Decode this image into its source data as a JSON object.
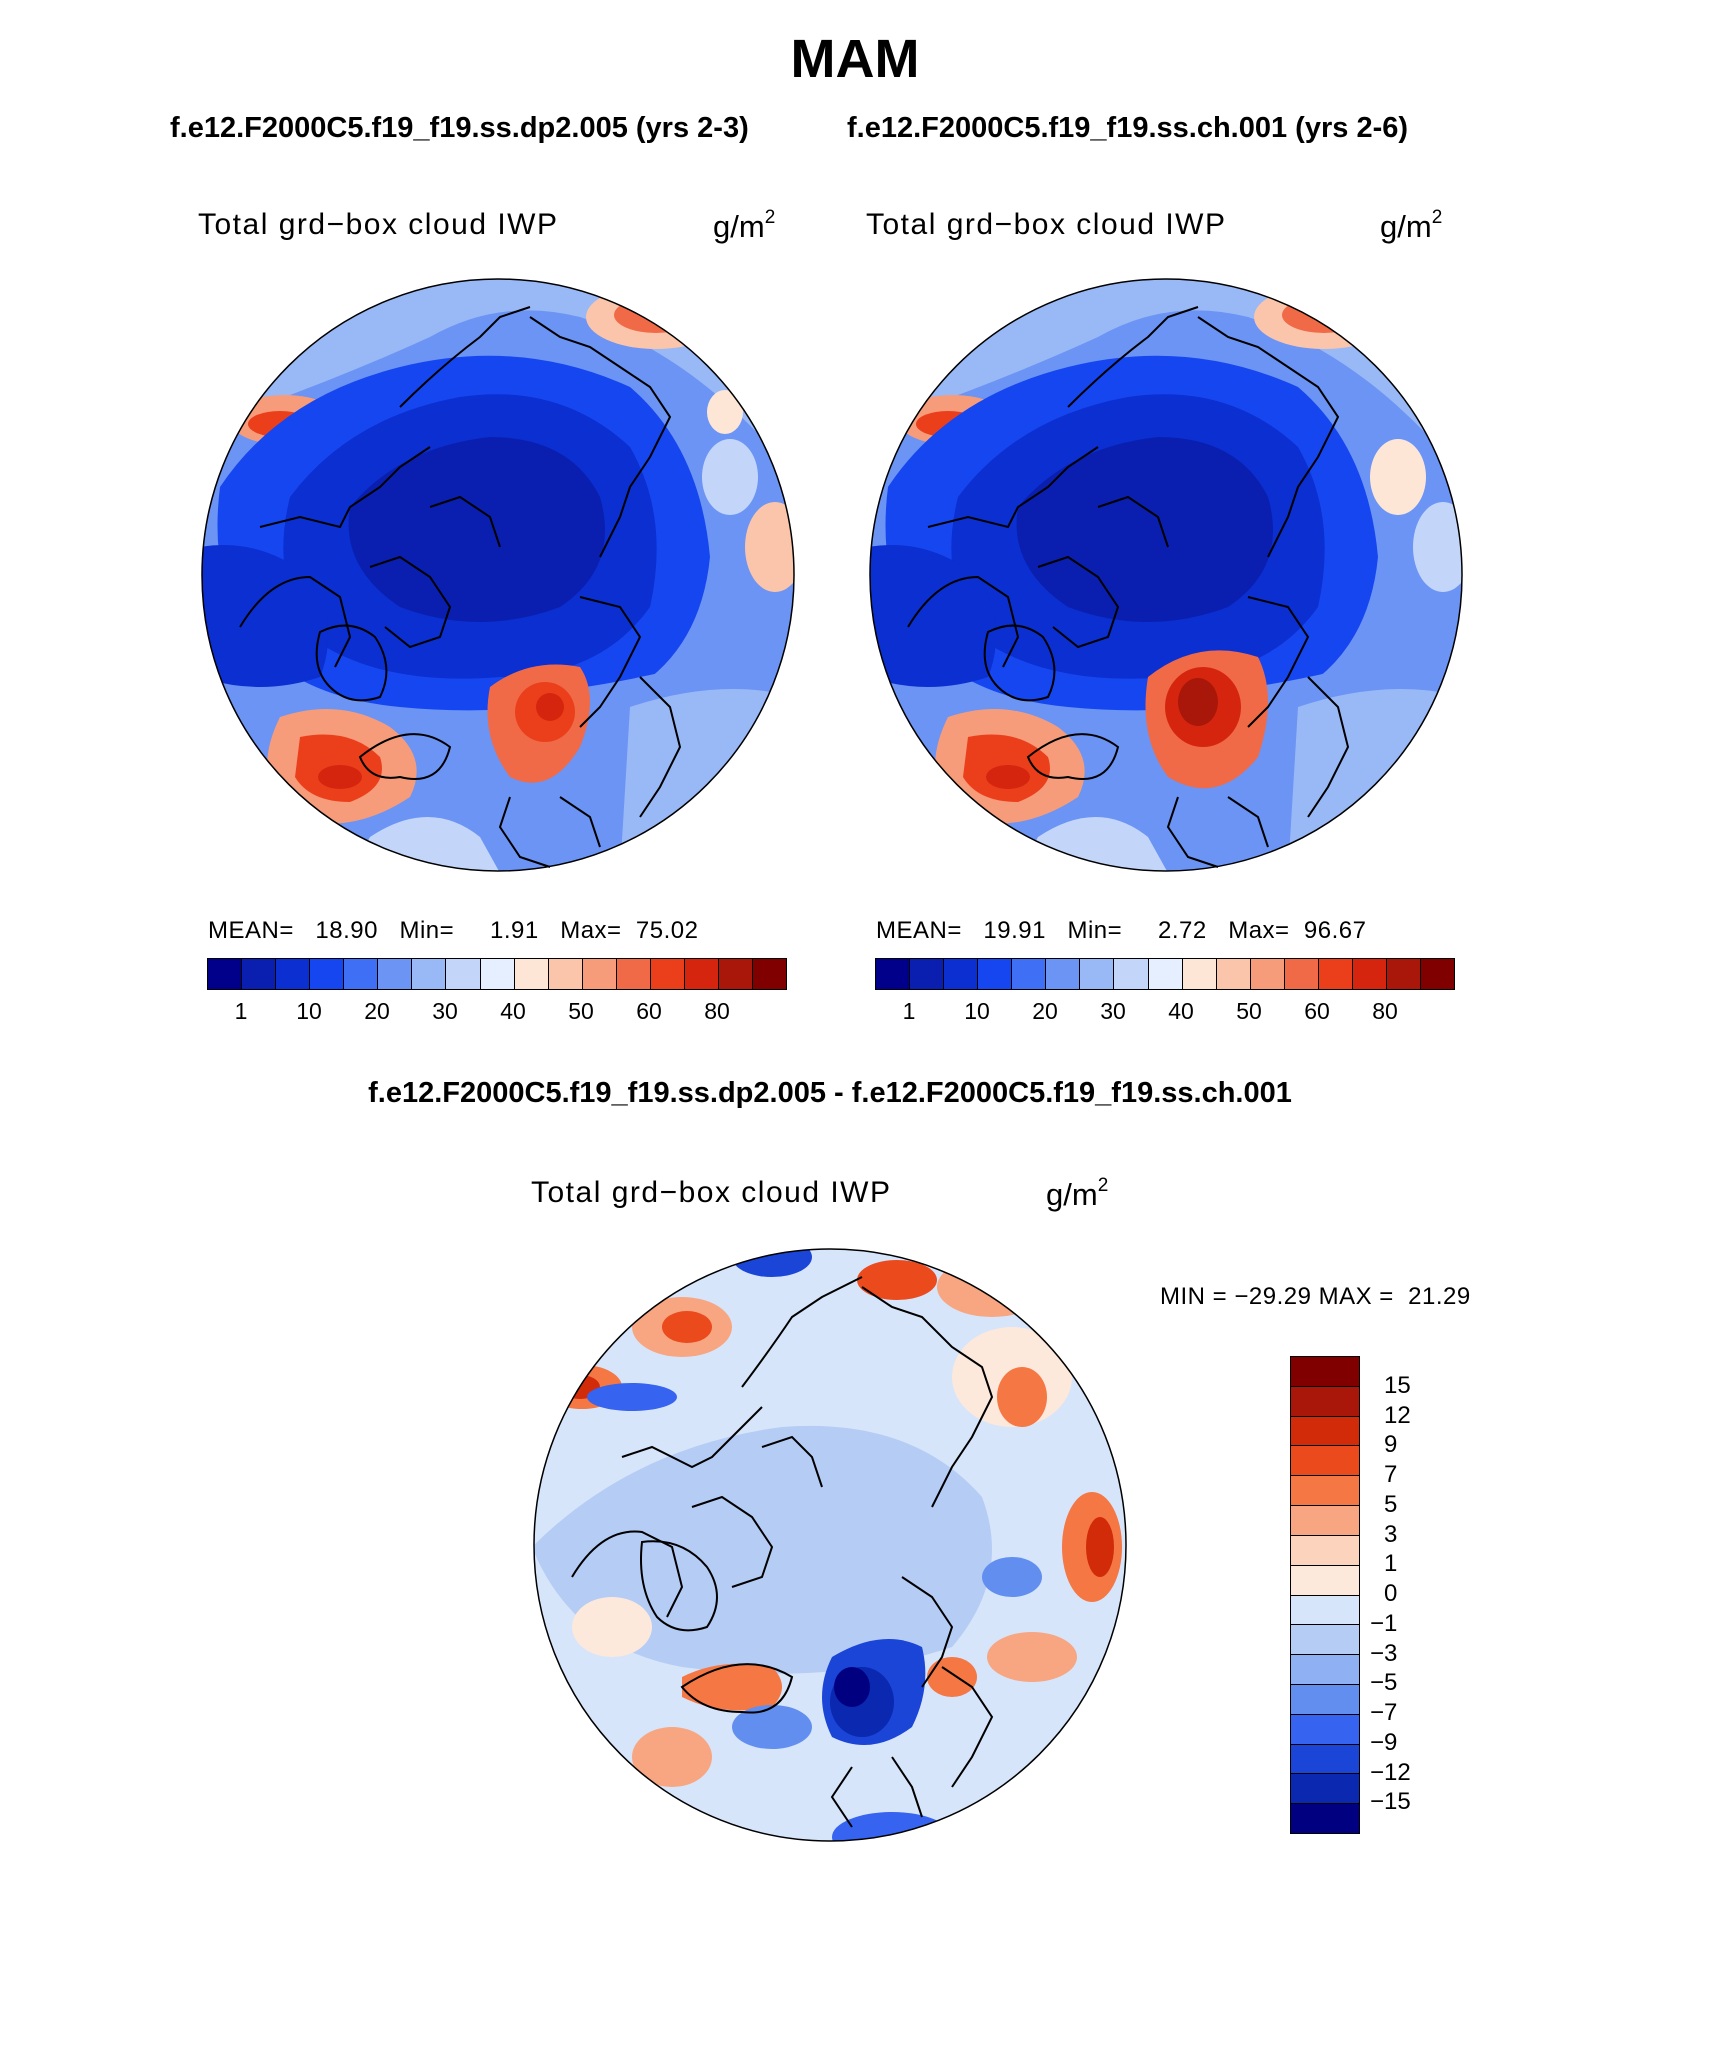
{
  "page": {
    "season": "MAM",
    "run_a": "f.e12.F2000C5.f19_f19.ss.dp2.005 (yrs 2-3)",
    "run_b": "f.e12.F2000C5.f19_f19.ss.ch.001 (yrs 2-6)",
    "diff_title": "f.e12.F2000C5.f19_f19.ss.dp2.005 - f.e12.F2000C5.f19_f19.ss.ch.001"
  },
  "panels": [
    {
      "variable": "Total grd−box cloud IWP",
      "unit_base": "g/m",
      "unit_exp": "2",
      "mean_label": "MEAN=",
      "mean": "18.90",
      "min_label": "Min=",
      "min": "1.91",
      "max_label": "Max=",
      "max": "75.02"
    },
    {
      "variable": "Total grd−box cloud IWP",
      "unit_base": "g/m",
      "unit_exp": "2",
      "mean_label": "MEAN=",
      "mean": "19.91",
      "min_label": "Min=",
      "min": "2.72",
      "max_label": "Max=",
      "max": "96.67"
    },
    {
      "variable": "Total grd−box cloud IWP",
      "unit_base": "g/m",
      "unit_exp": "2",
      "min_label": "MIN =",
      "min": "−29.29",
      "max_label": "MAX =",
      "max": "21.29"
    }
  ],
  "colorbars": {
    "abs_colors": [
      "#00008b",
      "#0a1fb0",
      "#0b2fd0",
      "#1646f0",
      "#3f6ff5",
      "#6b94f4",
      "#99b8f6",
      "#c3d6fa",
      "#e6efff",
      "#fde6d6",
      "#fbc5ab",
      "#f69c7a",
      "#f06a47",
      "#eb3f1c",
      "#d6250e",
      "#a81709",
      "#800000"
    ],
    "abs_labels": [
      "1",
      "10",
      "20",
      "30",
      "40",
      "50",
      "60",
      "80"
    ],
    "diff_colors": [
      "#800000",
      "#a81709",
      "#d22b0a",
      "#eb4a1c",
      "#f47744",
      "#f8a682",
      "#fcd3bd",
      "#fde8dc",
      "#d6e5fa",
      "#b5ccf5",
      "#8fb0f2",
      "#628ef0",
      "#3663ef",
      "#1a45d6",
      "#0a28b0",
      "#000080"
    ],
    "diff_labels": [
      "15",
      "12",
      "9",
      "7",
      "5",
      "3",
      "1",
      "0",
      "−1",
      "−3",
      "−5",
      "−7",
      "−9",
      "−12",
      "−15"
    ]
  }
}
